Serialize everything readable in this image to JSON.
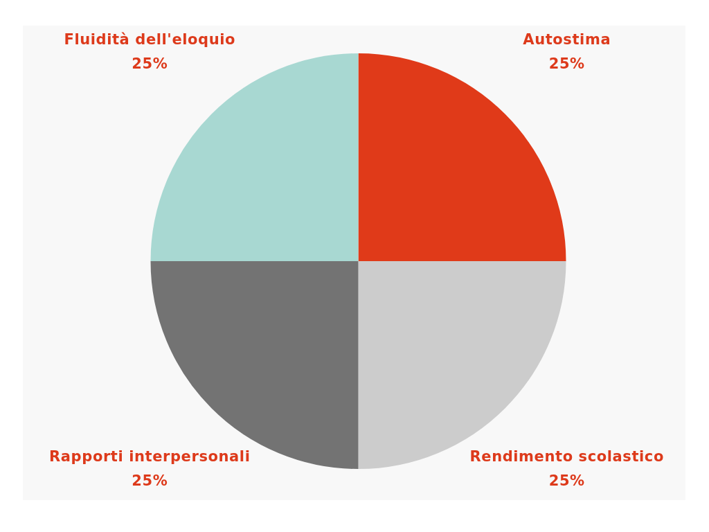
{
  "chart_data": {
    "type": "pie",
    "categories": [
      "Autostima",
      "Rendimento scolastico",
      "Rapporti interpersonali",
      "Fluidità dell'eloquio"
    ],
    "values": [
      25,
      25,
      25,
      25
    ],
    "colors": [
      "#e03a19",
      "#cccccc",
      "#737373",
      "#a8d8d2"
    ],
    "value_labels": [
      "25%",
      "25%",
      "25%",
      "25%"
    ]
  }
}
